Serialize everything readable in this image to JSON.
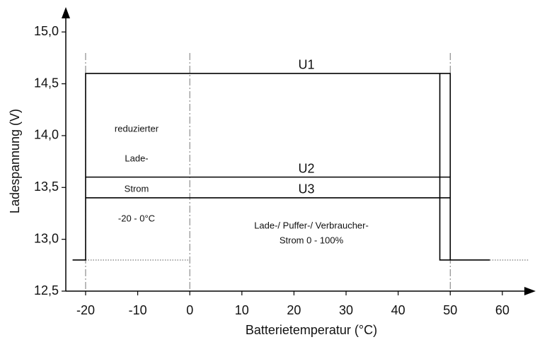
{
  "chart_data": {
    "type": "line",
    "x_label": "Batterietemperatur (°C)",
    "y_label": "Ladespannung (V)",
    "xlim": [
      -23.8,
      66.4
    ],
    "ylim": [
      12.5,
      15.24
    ],
    "xticks": [
      -20,
      -10,
      0,
      10,
      20,
      30,
      40,
      50,
      60
    ],
    "yticks": [
      {
        "value": 12.5,
        "label": "12,5"
      },
      {
        "value": 13.0,
        "label": "13,0"
      },
      {
        "value": 13.5,
        "label": "13,5"
      },
      {
        "value": 14.0,
        "label": "14,0"
      },
      {
        "value": 14.5,
        "label": "14,5"
      },
      {
        "value": 15.0,
        "label": "15,0"
      }
    ],
    "vlines": [
      -20,
      0,
      50
    ],
    "series": [
      {
        "name": "U1",
        "color": "#000000",
        "x": [
          -22.5,
          -20,
          -20,
          48,
          48,
          57.6,
          null,
          48,
          50,
          50
        ],
        "values": [
          12.8,
          12.8,
          14.6,
          14.6,
          12.8,
          12.8,
          null,
          14.6,
          14.6,
          12.8
        ]
      },
      {
        "name": "U2",
        "color": "#000000",
        "x": [
          -20,
          50
        ],
        "values": [
          13.6,
          13.6
        ]
      },
      {
        "name": "U3",
        "color": "#000000",
        "x": [
          -20,
          50
        ],
        "values": [
          13.4,
          13.4
        ]
      }
    ],
    "dotted_segments": [
      {
        "x": [
          -20,
          0
        ],
        "values": [
          12.8,
          12.8
        ]
      },
      {
        "x": [
          57.6,
          65
        ],
        "values": [
          12.8,
          12.8
        ]
      }
    ],
    "annotations": [
      "reduzierter",
      "Lade-",
      "Strom",
      "-20 - 0°C",
      "Lade-/ Puffer-/ Verbraucher-",
      "Strom  0 - 100%"
    ]
  }
}
